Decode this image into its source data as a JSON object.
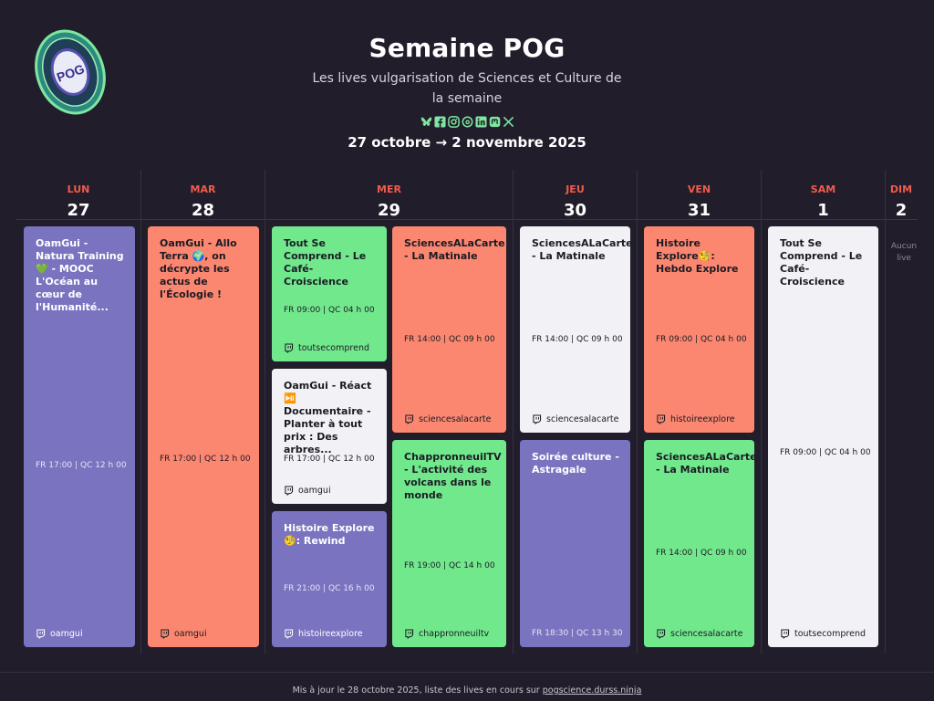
{
  "header": {
    "title": "Semaine POG",
    "subtitle": "Les lives vulgarisation de Sciences et Culture de la semaine",
    "dates": "27 octobre → 2 novembre 2025",
    "logo_text": "POG",
    "logo_ring_text": "POG SCIENCE"
  },
  "social_icons": [
    "bluesky-icon",
    "facebook-icon",
    "instagram-icon",
    "threads-icon",
    "linkedin-icon",
    "mastodon-icon",
    "x-icon"
  ],
  "days": [
    {
      "name": "LUN",
      "num": "27"
    },
    {
      "name": "MAR",
      "num": "28"
    },
    {
      "name": "MER",
      "num": "29"
    },
    {
      "name": "JEU",
      "num": "30"
    },
    {
      "name": "VEN",
      "num": "31"
    },
    {
      "name": "SAM",
      "num": "1"
    },
    {
      "name": "DIM",
      "num": "2"
    }
  ],
  "events": [
    {
      "title": "OamGui - Natura Training 💚 - MOOC L'Océan au cœur de l'Humanité...",
      "time": "FR 17:00  |  QC 12 h 00",
      "channel": "oamgui",
      "color": "purple"
    },
    {
      "title": "OamGui - Allo Terra 🌍, on décrypte les actus de l'Écologie !",
      "time": "FR 17:00  |  QC 12 h 00",
      "channel": "oamgui",
      "color": "salmon"
    },
    {
      "title": "Tout Se Comprend - Le Café-Croiscience",
      "time": "FR 09:00  |  QC 04 h 00",
      "channel": "toutsecomprend",
      "color": "green"
    },
    {
      "title": "OamGui - Réact ⏯️ Documentaire - Planter à tout prix : Des arbres...",
      "time": "FR 17:00  |  QC 12 h 00",
      "channel": "oamgui",
      "color": "white"
    },
    {
      "title": "Histoire Explore🧐: Rewind",
      "time": "FR 21:00  |  QC 16 h 00",
      "channel": "histoireexplore",
      "color": "purple"
    },
    {
      "title": "SciencesALaCarte - La Matinale",
      "time": "FR 14:00  |  QC 09 h 00",
      "channel": "sciencesalacarte",
      "color": "salmon"
    },
    {
      "title": "ChappronneuilTV - L'activité des volcans dans le monde",
      "time": "FR 19:00  |  QC 14 h 00",
      "channel": "chappronneuiltv",
      "color": "green"
    },
    {
      "title": "SciencesALaCarte - La Matinale",
      "time": "FR 14:00  |  QC 09 h 00",
      "channel": "sciencesalacarte",
      "color": "white"
    },
    {
      "title": "Soirée culture - Astragale",
      "time": "FR 18:30  |  QC 13 h 30",
      "channel": "",
      "color": "purple"
    },
    {
      "title": "Histoire Explore🧐: Hebdo Explore",
      "time": "FR 09:00  |  QC 04 h 00",
      "channel": "histoireexplore",
      "color": "salmon"
    },
    {
      "title": "SciencesALaCarte - La Matinale",
      "time": "FR 14:00  |  QC 09 h 00",
      "channel": "sciencesalacarte",
      "color": "green"
    },
    {
      "title": "Tout Se Comprend - Le Café-Croiscience",
      "time": "FR 09:00  |  QC 04 h 00",
      "channel": "toutsecomprend",
      "color": "white"
    }
  ],
  "no_live": "Aucun live",
  "footer": {
    "text": "Mis à jour le 28 octobre 2025, liste des lives en cours sur ",
    "link": "pogscience.durss.ninja"
  }
}
